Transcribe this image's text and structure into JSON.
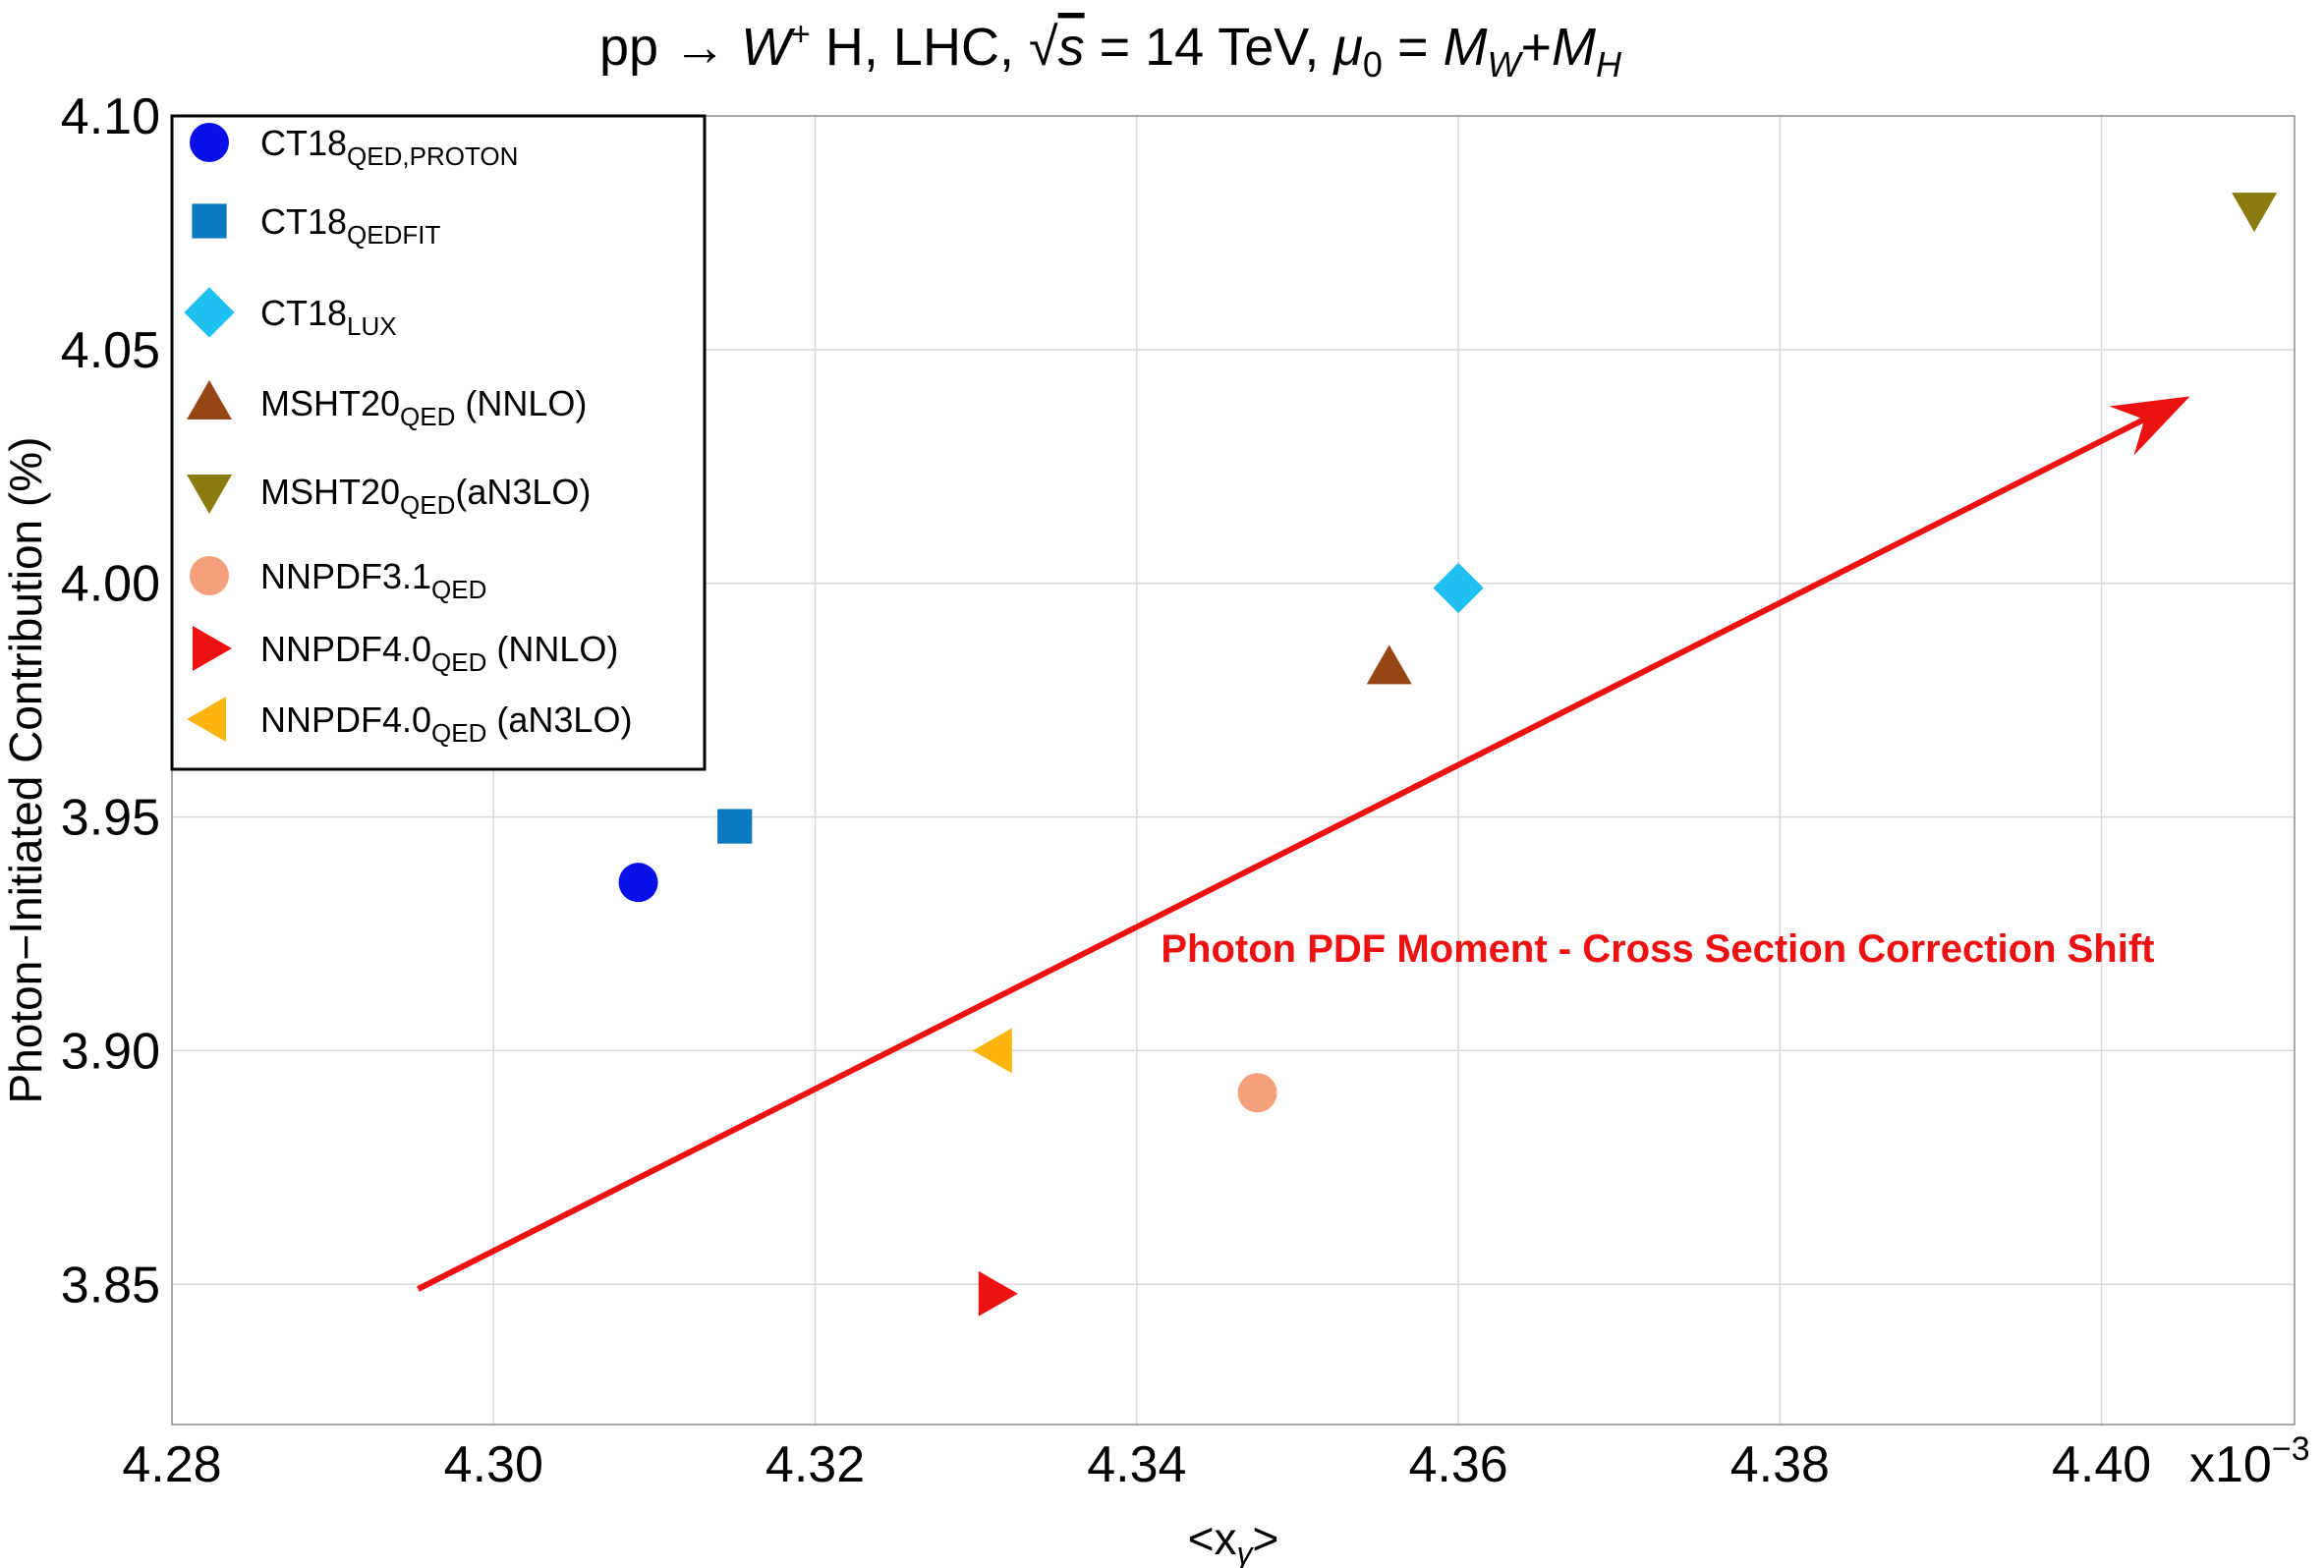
{
  "chart_data": {
    "type": "scatter",
    "title": {
      "pre": "pp → ",
      "w": "W",
      "w_sup": "+",
      "h_lhc": " H, LHC, ",
      "sqrt_s": "s",
      "energy": " = 14 TeV, ",
      "mu": "μ",
      "mu_sub": "0",
      "equals": " = ",
      "mw": "M",
      "mw_sub": "W",
      "plus": "+",
      "mh": "M",
      "mh_sub": "H"
    },
    "xlabel": {
      "pre": "<x",
      "sub": "γ",
      "post": ">"
    },
    "ylabel": "Photon−Initiated Contribution (%)",
    "x_scale_label": {
      "base": "x10",
      "exp": "−3"
    },
    "xlim": [
      4.28,
      4.412
    ],
    "ylim": [
      3.82,
      4.1
    ],
    "xticks": [
      4.28,
      4.3,
      4.32,
      4.34,
      4.36,
      4.38,
      4.4
    ],
    "xtick_labels": [
      "4.28",
      "4.30",
      "4.32",
      "4.34",
      "4.36",
      "4.38",
      "4.40"
    ],
    "yticks": [
      3.85,
      3.9,
      3.95,
      4.0,
      4.05,
      4.1
    ],
    "ytick_labels": [
      "3.85",
      "3.90",
      "3.95",
      "4.00",
      "4.05",
      "4.10"
    ],
    "grid": true,
    "legend_position": "top-left",
    "series": [
      {
        "name": "CT18",
        "sub": "QED,PROTON",
        "suffix": "",
        "marker": "circle",
        "color": "#0a10e8",
        "x": 4.309,
        "y": 3.936
      },
      {
        "name": "CT18",
        "sub": "QEDFIT",
        "suffix": "",
        "marker": "square",
        "color": "#0a7bc0",
        "x": 4.315,
        "y": 3.948
      },
      {
        "name": "CT18",
        "sub": "LUX",
        "suffix": "",
        "marker": "diamond",
        "color": "#1ec0f0",
        "x": 4.36,
        "y": 3.999
      },
      {
        "name": "MSHT20",
        "sub": "QED",
        "suffix": " (NNLO)",
        "marker": "triangle-up",
        "color": "#964514",
        "x": 4.3557,
        "y": 3.982
      },
      {
        "name": "MSHT20",
        "sub": "QED",
        "suffix": "(aN3LO)",
        "marker": "triangle-down",
        "color": "#8a7a10",
        "x": 4.4095,
        "y": 4.08
      },
      {
        "name": "NNPDF3.1",
        "sub": "QED",
        "suffix": "",
        "marker": "circle",
        "color": "#f5a07c",
        "x": 4.3475,
        "y": 3.891
      },
      {
        "name": "NNPDF4.0",
        "sub": "QED",
        "suffix": " (NNLO)",
        "marker": "triangle-right",
        "color": "#ee1111",
        "x": 4.3312,
        "y": 3.848
      },
      {
        "name": "NNPDF4.0",
        "sub": "QED",
        "suffix": " (aN3LO)",
        "marker": "triangle-left",
        "color": "#fbb410",
        "x": 4.3312,
        "y": 3.9
      }
    ],
    "arrow": {
      "x0": 4.2953,
      "y0": 3.849,
      "x1": 4.4055,
      "y1": 4.04,
      "color": "#ee1111"
    },
    "annotation": {
      "text": "Photon PDF Moment - Cross Section Correction Shift",
      "x": 4.3415,
      "y": 3.919,
      "color": "#ee1111"
    }
  }
}
